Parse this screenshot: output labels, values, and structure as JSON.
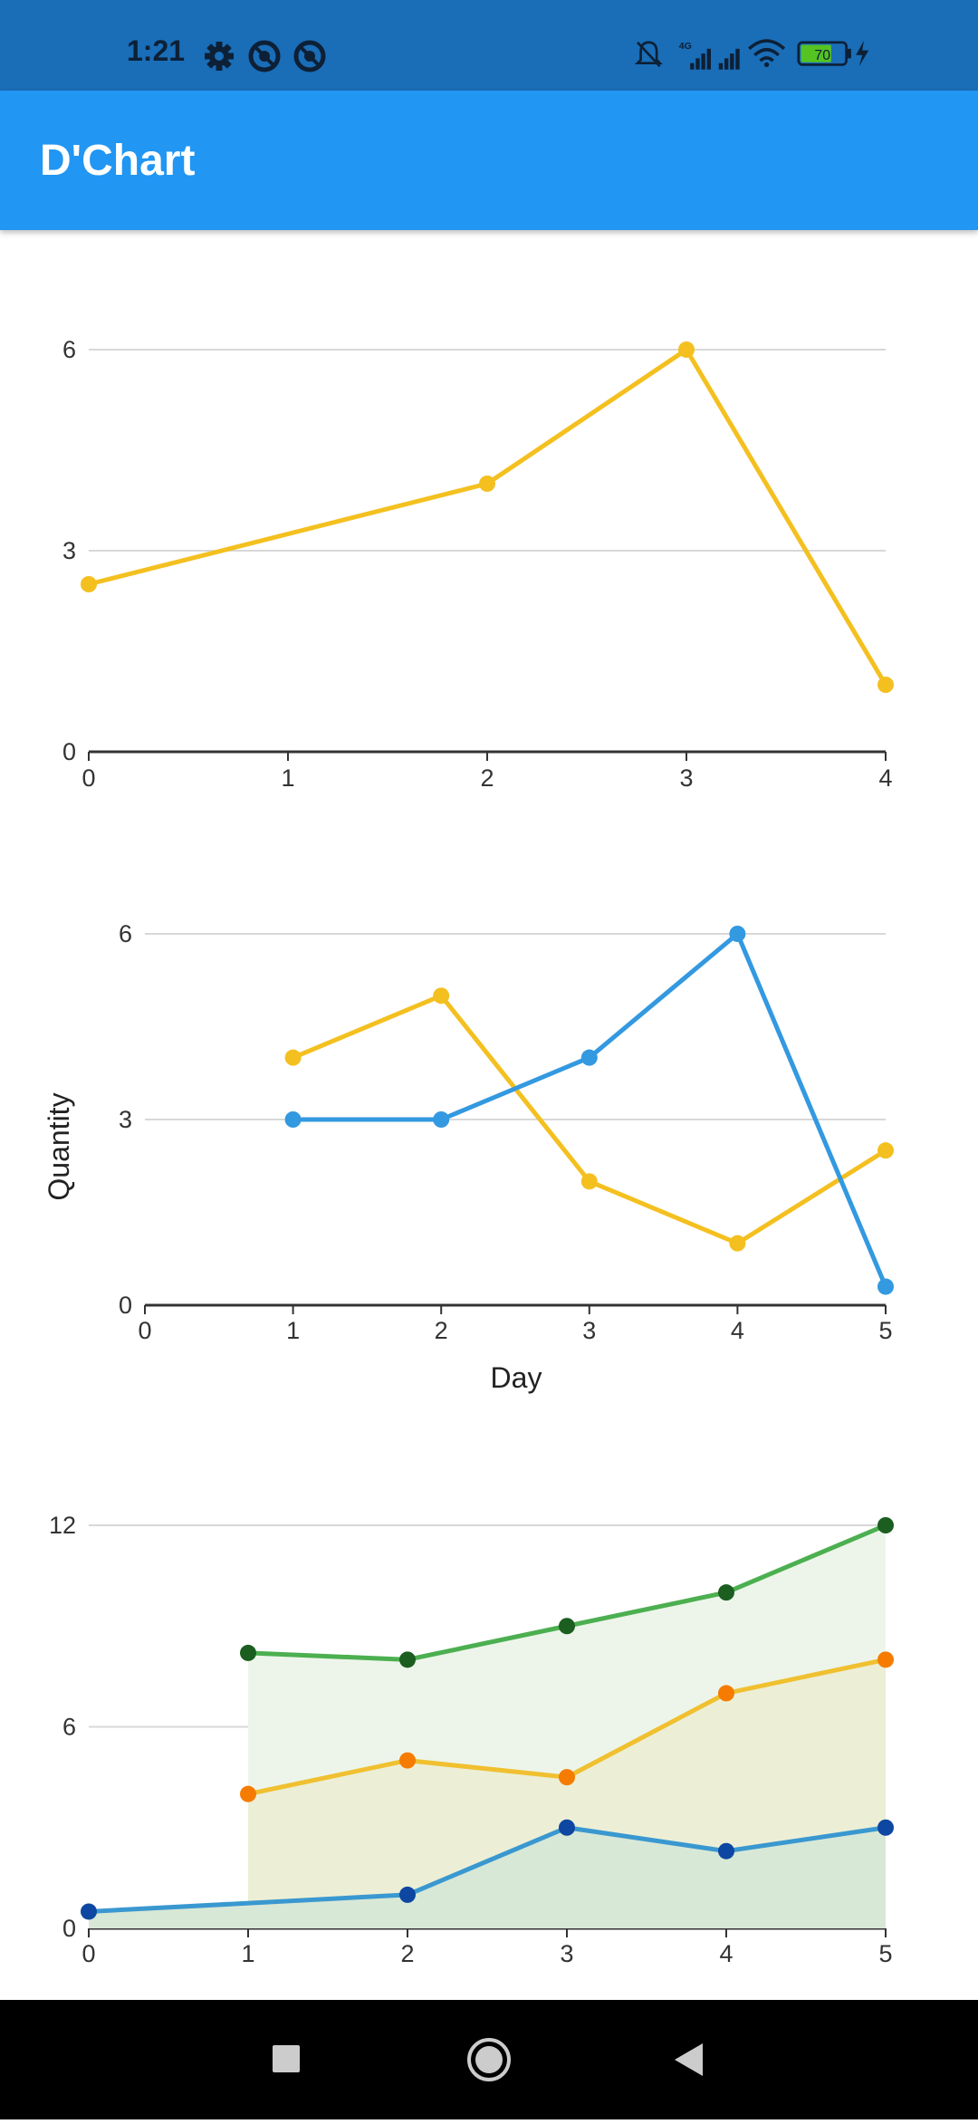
{
  "status_bar": {
    "time": "1:21",
    "left_icons": [
      "gear-icon",
      "do-not-disturb-icon",
      "do-not-disturb-icon"
    ],
    "right_icons": [
      "bell-off-icon",
      "signal-4g-icon",
      "signal-icon",
      "wifi-icon",
      "battery-icon",
      "charging-icon"
    ],
    "network_label": "4G",
    "battery_level": "70"
  },
  "app_bar": {
    "title": "D'Chart"
  },
  "colors": {
    "status_bar": "#1a6db7",
    "app_bar": "#2196f3",
    "yellow": "#f4c020",
    "blue": "#3399e0",
    "green": "#4caf50",
    "dark_green": "#1b5e20",
    "orange": "#f57c00",
    "dark_blue": "#0d47a1",
    "grid": "#d8d8d8",
    "axis": "#333333",
    "nav_bar": "#000000"
  },
  "chart_data": [
    {
      "type": "line",
      "title": "",
      "xlabel": "",
      "ylabel": "",
      "xticks": [
        "0",
        "1",
        "2",
        "3",
        "4"
      ],
      "yticks": [
        "0",
        "3",
        "6"
      ],
      "xlim": [
        0,
        4
      ],
      "ylim": [
        0,
        6
      ],
      "grid": true,
      "series": [
        {
          "color": "#f4c020",
          "points": [
            [
              0,
              2.5
            ],
            [
              2,
              4
            ],
            [
              3,
              6
            ],
            [
              4,
              1
            ]
          ]
        }
      ]
    },
    {
      "type": "line",
      "title": "",
      "xlabel": "Day",
      "ylabel": "Quantity",
      "xticks": [
        "0",
        "1",
        "2",
        "3",
        "4",
        "5"
      ],
      "yticks": [
        "0",
        "3",
        "6"
      ],
      "xlim": [
        0,
        5
      ],
      "ylim": [
        0,
        6
      ],
      "grid": true,
      "series": [
        {
          "color": "#f4c020",
          "points": [
            [
              1,
              4
            ],
            [
              2,
              5
            ],
            [
              3,
              2
            ],
            [
              4,
              1
            ],
            [
              5,
              2.5
            ]
          ]
        },
        {
          "color": "#3399e0",
          "points": [
            [
              1,
              3
            ],
            [
              2,
              3
            ],
            [
              3,
              4
            ],
            [
              4,
              6
            ],
            [
              5,
              0.3
            ]
          ]
        }
      ]
    },
    {
      "type": "area",
      "title": "",
      "xlabel": "",
      "ylabel": "",
      "xticks": [
        "0",
        "1",
        "2",
        "3",
        "4",
        "5"
      ],
      "yticks": [
        "0",
        "6",
        "12"
      ],
      "xlim": [
        0,
        5
      ],
      "ylim": [
        0,
        12
      ],
      "grid": true,
      "series": [
        {
          "color": "#4caf50",
          "point_color": "#1b5e20",
          "fill": "#edf5ea",
          "points": [
            [
              1,
              8.2
            ],
            [
              2,
              8
            ],
            [
              3,
              9
            ],
            [
              4,
              10
            ],
            [
              5,
              12
            ]
          ]
        },
        {
          "color": "#f0c030",
          "point_color": "#f57c00",
          "fill": "#ecefd6",
          "points": [
            [
              1,
              4
            ],
            [
              2,
              5
            ],
            [
              3,
              4.5
            ],
            [
              4,
              7
            ],
            [
              5,
              8
            ]
          ]
        },
        {
          "color": "#3a98d0",
          "point_color": "#0d47a1",
          "fill": "#d8e8d6",
          "points": [
            [
              0,
              0.5
            ],
            [
              2,
              1
            ],
            [
              3,
              3
            ],
            [
              4,
              2.3
            ],
            [
              5,
              3
            ]
          ]
        }
      ]
    }
  ],
  "nav_bar": {
    "buttons": [
      "recent-apps-button",
      "home-button",
      "back-button"
    ]
  }
}
